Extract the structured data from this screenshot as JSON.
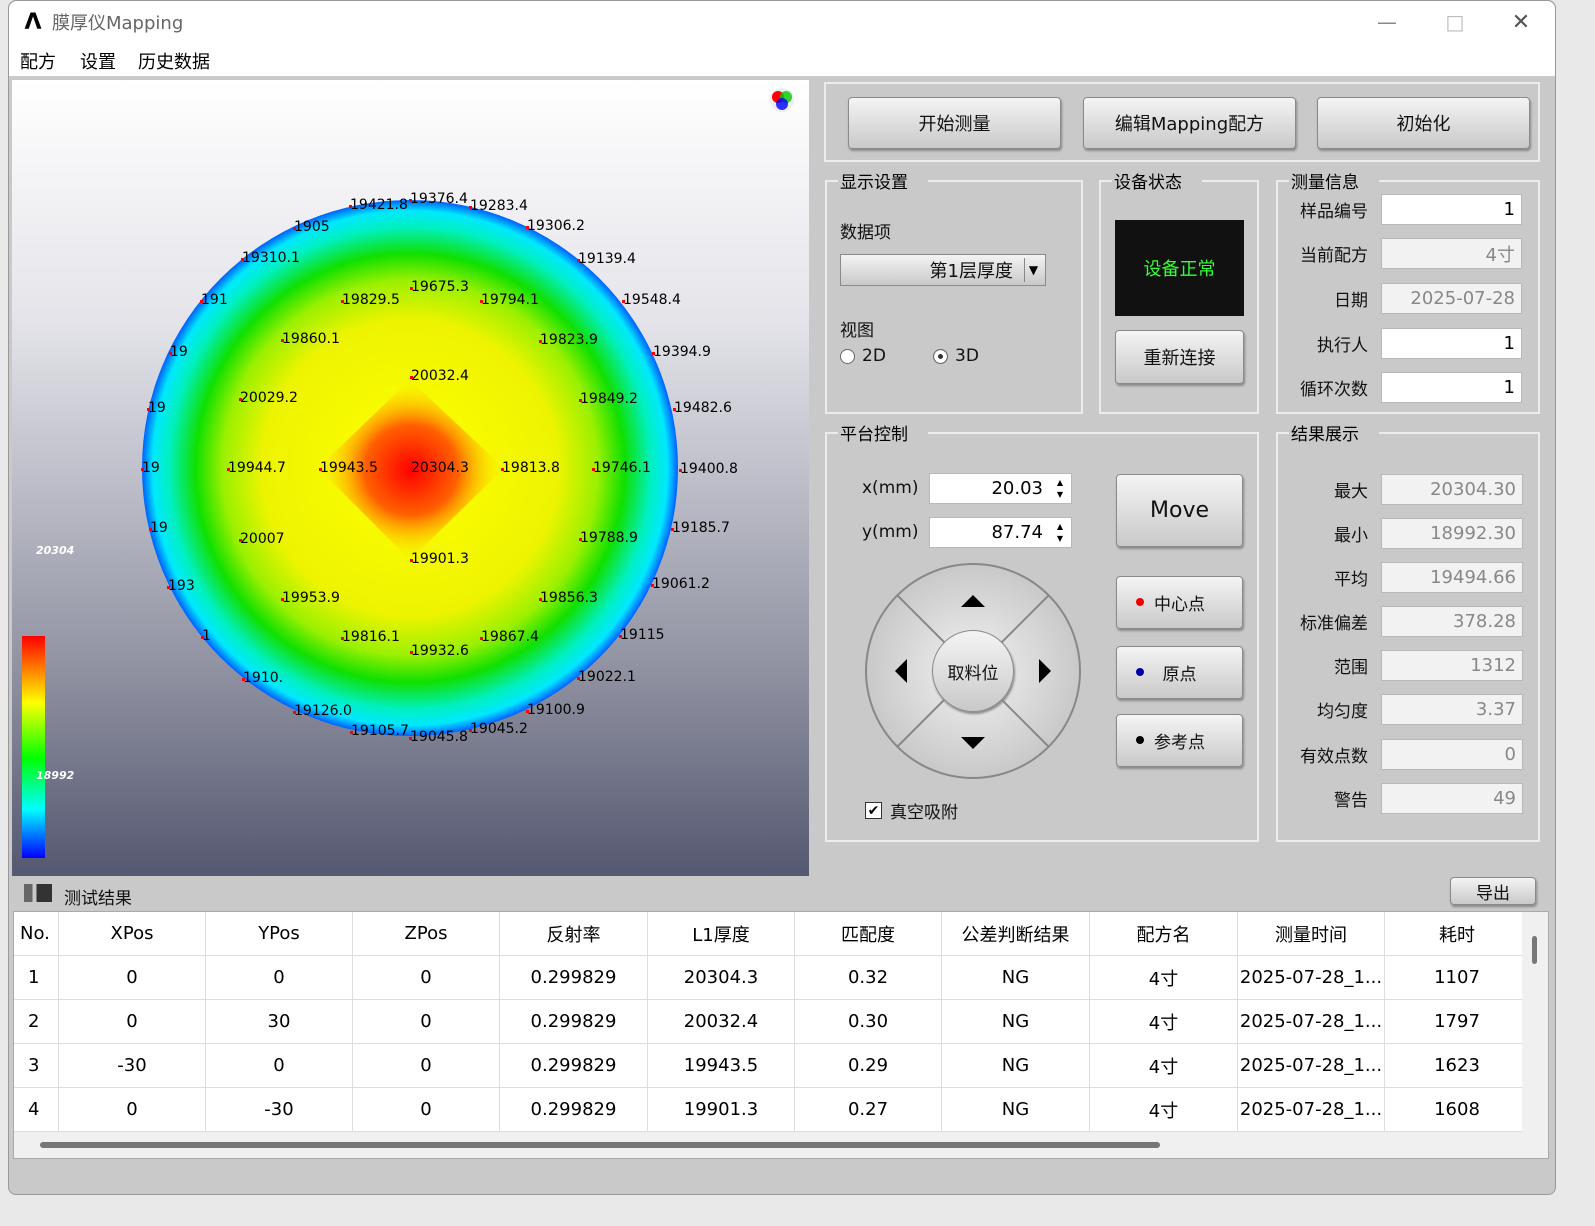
{
  "window": {
    "title": "膜厚仪Mapping"
  },
  "menu": [
    "配方",
    "设置",
    "历史数据"
  ],
  "map": {
    "colorbar_max": "20304",
    "colorbar_min": "18992",
    "labels": [
      "19421.8",
      "19376.4",
      "19283.4",
      "19306.2",
      "1905",
      "19310.1",
      "19139.4",
      "191",
      "19829.5",
      "19675.3",
      "19794.1",
      "19548.4",
      "19",
      "19860.1",
      "19823.9",
      "19394.9",
      "20032.4",
      "19",
      "20029.2",
      "19849.2",
      "19482.6",
      "19",
      "19944.7",
      "19943.5",
      "20304.3",
      "19813.8",
      "19746.1",
      "19400.8",
      "19",
      "20007",
      "19788.9",
      "19185.7",
      "19901.3",
      "193",
      "19953.9",
      "19856.3",
      "19061.2",
      "1",
      "19816.1",
      "19867.4",
      "19115",
      "19932.6",
      "19022.1",
      "1910.",
      "19126.0",
      "19100.9",
      "19105.7",
      "19045.8",
      "19045.2"
    ]
  },
  "toolbar": [
    "开始测量",
    "编辑Mapping配方",
    "初始化"
  ],
  "display": {
    "title": "显示设置",
    "data_item_label": "数据项",
    "data_item": "第1层厚度",
    "view_label": "视图",
    "options": [
      "2D",
      "3D"
    ]
  },
  "device": {
    "title": "设备状态",
    "status": "设备正常",
    "reconnect": "重新连接"
  },
  "info": {
    "title": "测量信息",
    "fields": [
      [
        "样品编号",
        "1"
      ],
      [
        "当前配方",
        "4寸"
      ],
      [
        "日期",
        "2025-07-28"
      ],
      [
        "执行人",
        "1"
      ],
      [
        "循环次数",
        "1"
      ]
    ]
  },
  "platform": {
    "title": "平台控制",
    "x_label": "x(mm)",
    "x": "20.03",
    "y_label": "y(mm)",
    "y": "87.74",
    "move": "Move",
    "center": "取料位",
    "points": [
      "中心点",
      "原点",
      "参考点"
    ],
    "vacuum": "真空吸附"
  },
  "results": {
    "title": "结果展示",
    "fields": [
      [
        "最大",
        "20304.30"
      ],
      [
        "最小",
        "18992.30"
      ],
      [
        "平均",
        "19494.66"
      ],
      [
        "标准偏差",
        "378.28"
      ],
      [
        "范围",
        "1312"
      ],
      [
        "均匀度",
        "3.37"
      ],
      [
        "有效点数",
        "0"
      ],
      [
        "警告",
        "49"
      ]
    ]
  },
  "table": {
    "title": "测试结果",
    "export": "导出",
    "headers": [
      "No.",
      "XPos",
      "YPos",
      "ZPos",
      "反射率",
      "L1厚度",
      "匹配度",
      "公差判断结果",
      "配方名",
      "测量时间",
      "耗时"
    ],
    "rows": [
      [
        "1",
        "0",
        "0",
        "0",
        "0.299829",
        "20304.3",
        "0.32",
        "NG",
        "4寸",
        "2025-07-28_1...",
        "1107"
      ],
      [
        "2",
        "0",
        "30",
        "0",
        "0.299829",
        "20032.4",
        "0.30",
        "NG",
        "4寸",
        "2025-07-28_1...",
        "1797"
      ],
      [
        "3",
        "-30",
        "0",
        "0",
        "0.299829",
        "19943.5",
        "0.29",
        "NG",
        "4寸",
        "2025-07-28_1...",
        "1623"
      ],
      [
        "4",
        "0",
        "-30",
        "0",
        "0.299829",
        "19901.3",
        "0.27",
        "NG",
        "4寸",
        "2025-07-28_1...",
        "1608"
      ]
    ]
  }
}
